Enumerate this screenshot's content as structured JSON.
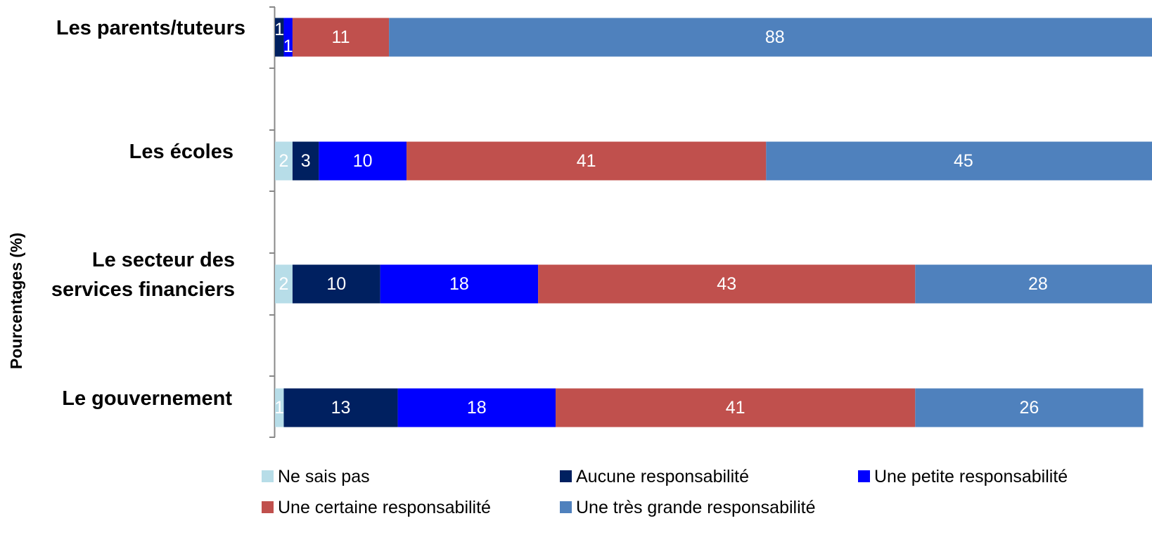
{
  "chart_data": {
    "type": "bar",
    "orientation": "horizontal",
    "stacked": true,
    "categories": [
      "Les parents/tuteurs",
      "Les écoles",
      "Le secteur des services financiers",
      "Le gouvernement"
    ],
    "category_lines": [
      [
        "Les parents/tuteurs"
      ],
      [
        "Les écoles"
      ],
      [
        "Le secteur des",
        "services financiers"
      ],
      [
        "Le gouvernement"
      ]
    ],
    "ylabel": "Pourcentages (%)",
    "xlim": [
      0,
      100
    ],
    "grid": false,
    "legend_position": "bottom",
    "series": [
      {
        "name": "Ne sais pas",
        "color": "#b7dde8",
        "values": [
          0,
          2,
          2,
          1
        ]
      },
      {
        "name": "Aucune responsabilité",
        "color": "#002060",
        "values": [
          1,
          3,
          10,
          13
        ]
      },
      {
        "name": "Une petite responsabilité",
        "color": "#0000ff",
        "values": [
          1,
          10,
          18,
          18
        ]
      },
      {
        "name": "Une certaine responsabilité",
        "color": "#c0504d",
        "values": [
          11,
          41,
          43,
          41
        ]
      },
      {
        "name": "Une très grande responsabilité",
        "color": "#4f81bd",
        "values": [
          88,
          45,
          28,
          26
        ]
      }
    ],
    "data_labels": [
      [
        "",
        "2",
        "2",
        "1"
      ],
      [
        "1",
        "3",
        "10",
        "13"
      ],
      [
        "1",
        "10",
        "18",
        "18"
      ],
      [
        "11",
        "41",
        "43",
        "41"
      ],
      [
        "88",
        "45",
        "28",
        "26"
      ]
    ]
  }
}
